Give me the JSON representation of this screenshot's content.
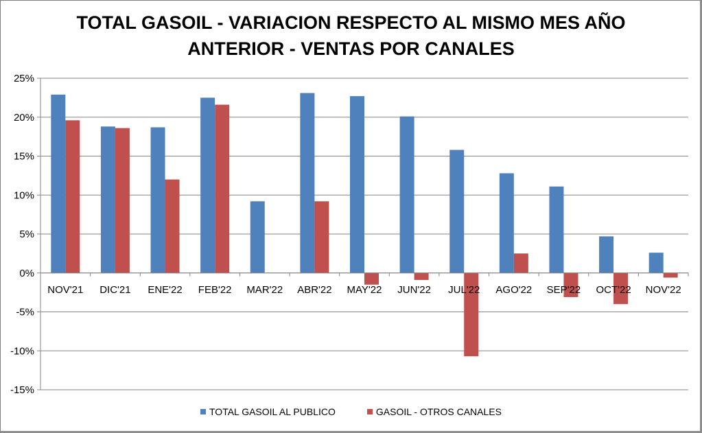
{
  "chart_data": {
    "type": "bar",
    "title_line1": "TOTAL GASOIL - VARIACION RESPECTO AL MISMO MES AÑO",
    "title_line2": "ANTERIOR - VENTAS POR CANALES",
    "categories": [
      "NOV'21",
      "DIC'21",
      "ENE'22",
      "FEB'22",
      "MAR'22",
      "ABR'22",
      "MAY'22",
      "JUN'22",
      "JUL'22",
      "AGO'22",
      "SEP'22",
      "OCT'22",
      "NOV'22"
    ],
    "series": [
      {
        "name": "TOTAL GASOIL AL PUBLICO",
        "color": "#4f81bd",
        "values": [
          22.9,
          18.8,
          18.7,
          22.5,
          9.2,
          23.1,
          22.7,
          20.1,
          15.8,
          12.8,
          11.1,
          4.7,
          2.6
        ]
      },
      {
        "name": "GASOIL - OTROS CANALES",
        "color": "#c0504d",
        "values": [
          19.6,
          18.6,
          12.0,
          21.6,
          0,
          9.2,
          -1.5,
          -0.9,
          -10.7,
          2.5,
          -3.1,
          -4.0,
          -0.6
        ]
      }
    ],
    "yticks": [
      25,
      20,
      15,
      10,
      5,
      0,
      -5,
      -10,
      -15
    ],
    "ytick_labels": [
      "25%",
      "20%",
      "15%",
      "10%",
      "5%",
      "0%",
      "-5%",
      "-10%",
      "-15%"
    ],
    "ylim": [
      -15,
      25
    ],
    "xlabel": "",
    "ylabel": "",
    "grid": true,
    "legend_position": "bottom"
  }
}
